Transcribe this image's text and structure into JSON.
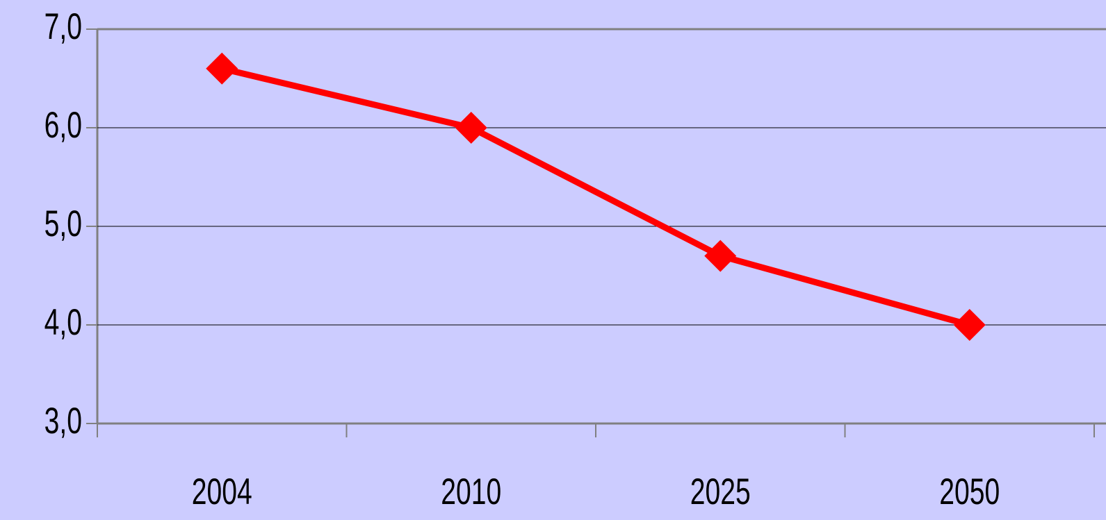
{
  "chart_data": {
    "type": "line",
    "categories": [
      "2004",
      "2010",
      "2025",
      "2050"
    ],
    "series": [
      {
        "color": "#ff0000",
        "values": [
          6.6,
          6.0,
          4.7,
          4.0
        ]
      }
    ],
    "ylim": [
      3,
      7
    ],
    "yticks": [
      {
        "value": 3,
        "label": "3,0"
      },
      {
        "value": 4,
        "label": "4,0"
      },
      {
        "value": 5,
        "label": "5,0"
      },
      {
        "value": 6,
        "label": "6,0"
      },
      {
        "value": 7,
        "label": "7,0"
      }
    ],
    "grid": true
  }
}
